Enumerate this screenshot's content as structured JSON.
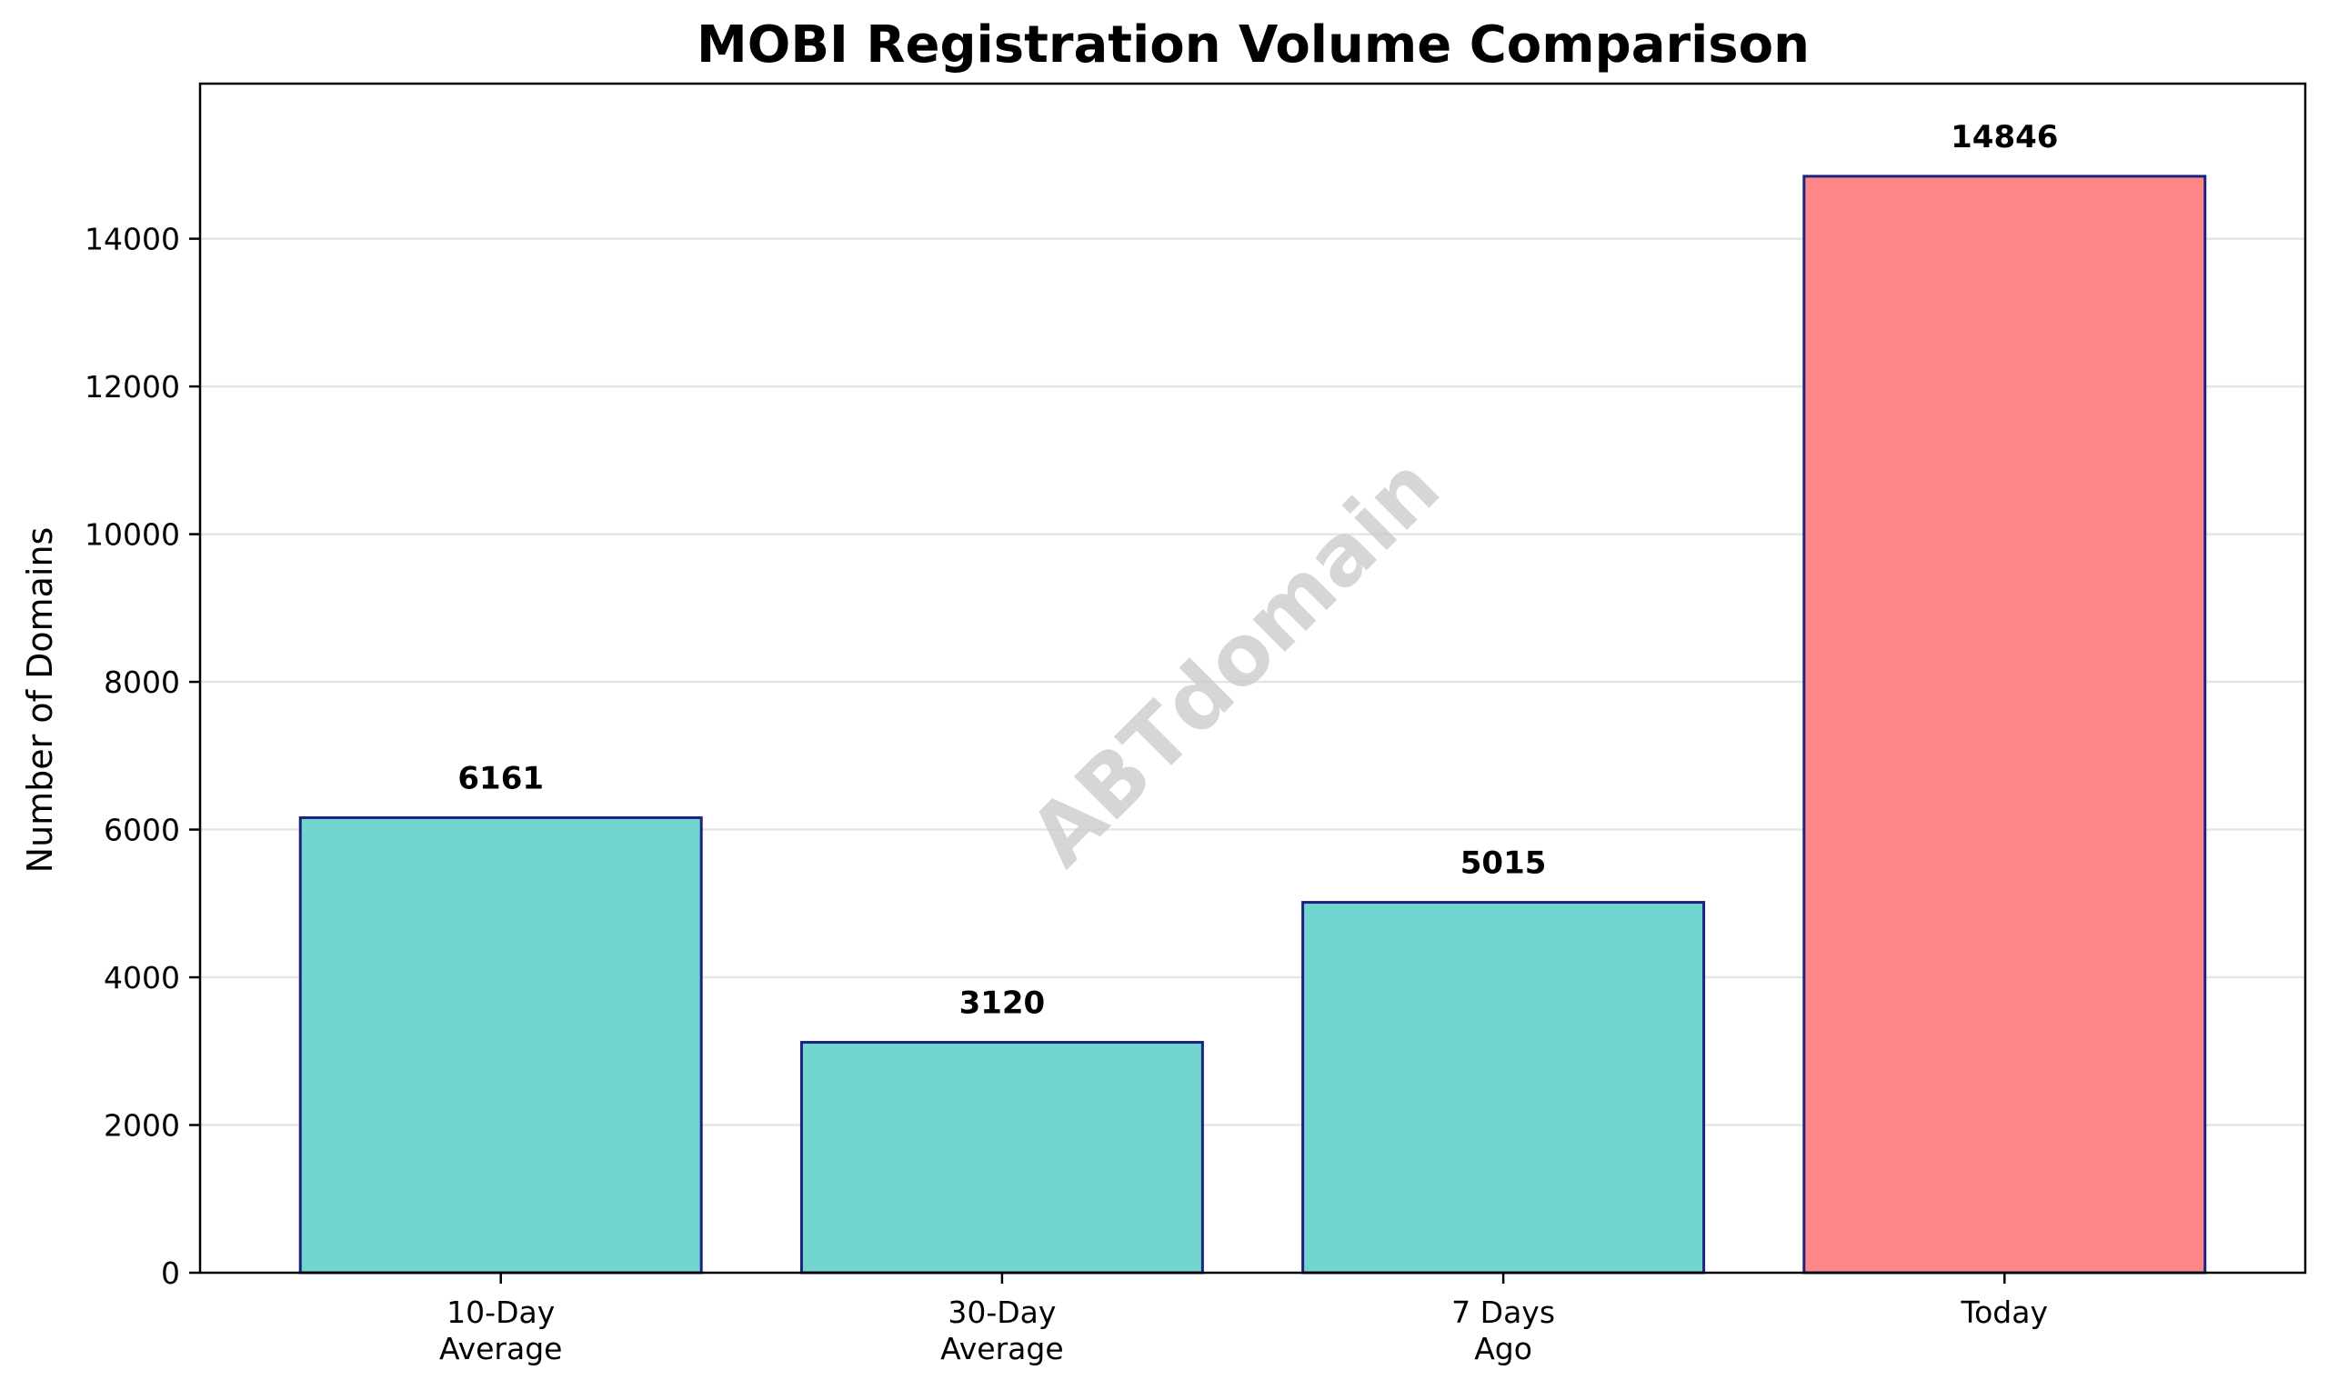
{
  "chart_data": {
    "type": "bar",
    "title": "MOBI Registration Volume Comparison",
    "xlabel": "",
    "ylabel": "Number of Domains",
    "categories": [
      "10-Day\nAverage",
      "30-Day\nAverage",
      "7 Days\nAgo",
      "Today"
    ],
    "values": [
      6161,
      3120,
      5015,
      14846
    ],
    "data_labels": [
      "6161",
      "3120",
      "5015",
      "14846"
    ],
    "ylim": [
      0,
      16100
    ],
    "yticks": [
      0,
      2000,
      4000,
      6000,
      8000,
      10000,
      12000,
      14000
    ],
    "ytick_labels": [
      "0",
      "2000",
      "4000",
      "6000",
      "8000",
      "10000",
      "12000",
      "14000"
    ],
    "grid": "horizontal",
    "colors": {
      "default_bar": "#73d5cf",
      "highlight_bar": "#ff8787",
      "bar_edge": "#1a237e",
      "grid": "#e5e5e5"
    },
    "highlight_category": "Today",
    "watermark": "ABTdomain"
  }
}
